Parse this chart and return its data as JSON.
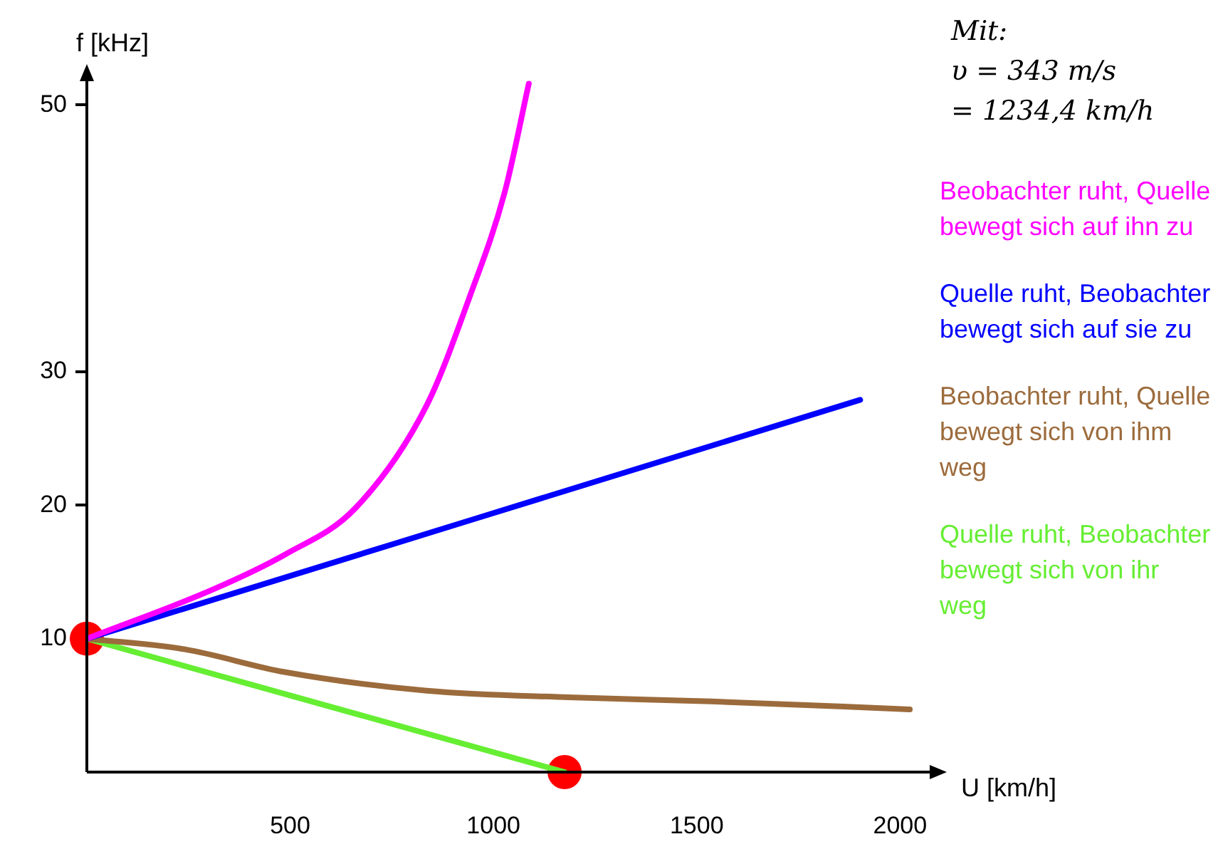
{
  "chart_data": {
    "type": "line",
    "xlabel": "U [km/h]",
    "ylabel": "f [kHz]",
    "xlim": [
      0,
      2080
    ],
    "xticks": [
      500,
      1000,
      1500,
      2000
    ],
    "ylim": [
      0,
      52
    ],
    "yticks": [
      10,
      20,
      30,
      50
    ],
    "grid": false,
    "legend": "right",
    "marker": "none",
    "line_style": "solid",
    "annotations": [
      "Mit:\nυ = 343 m/s\n= 1234,4 km/h"
    ],
    "series": [
      {
        "name": "Beobachter ruht, Quelle bewegt sich auf ihn zu",
        "color": "#ff00ff",
        "x": [
          0,
          311,
          487,
          661,
          836,
          940,
          1028,
          1087
        ],
        "values": [
          10,
          13.7,
          16.3,
          19.8,
          27.5,
          35.5,
          43.5,
          51.6
        ]
      },
      {
        "name": "Quelle ruht, Beobachter bewegt sich auf sie zu",
        "color": "#0000ff",
        "x": [
          0,
          1902
        ],
        "values": [
          10,
          27.9
        ]
      },
      {
        "name": "Beobachter ruht, Quelle bewegt sich von ihm weg",
        "color": "#9c6b3c",
        "x": [
          0,
          241,
          486,
          836,
          1185,
          1535,
          2024
        ],
        "values": [
          10,
          9.2,
          7.5,
          6.1,
          5.6,
          5.3,
          4.7
        ]
      },
      {
        "name": "Quelle ruht, Beobachter bewegt sich von ihr weg",
        "color": "#66ee33",
        "x": [
          0,
          1175
        ],
        "values": [
          10,
          0
        ]
      },
      {
        "type": "scatter",
        "marker": "circle",
        "color": "#ff0000",
        "x": [
          0,
          1175
        ],
        "values": [
          10,
          0
        ]
      }
    ]
  }
}
